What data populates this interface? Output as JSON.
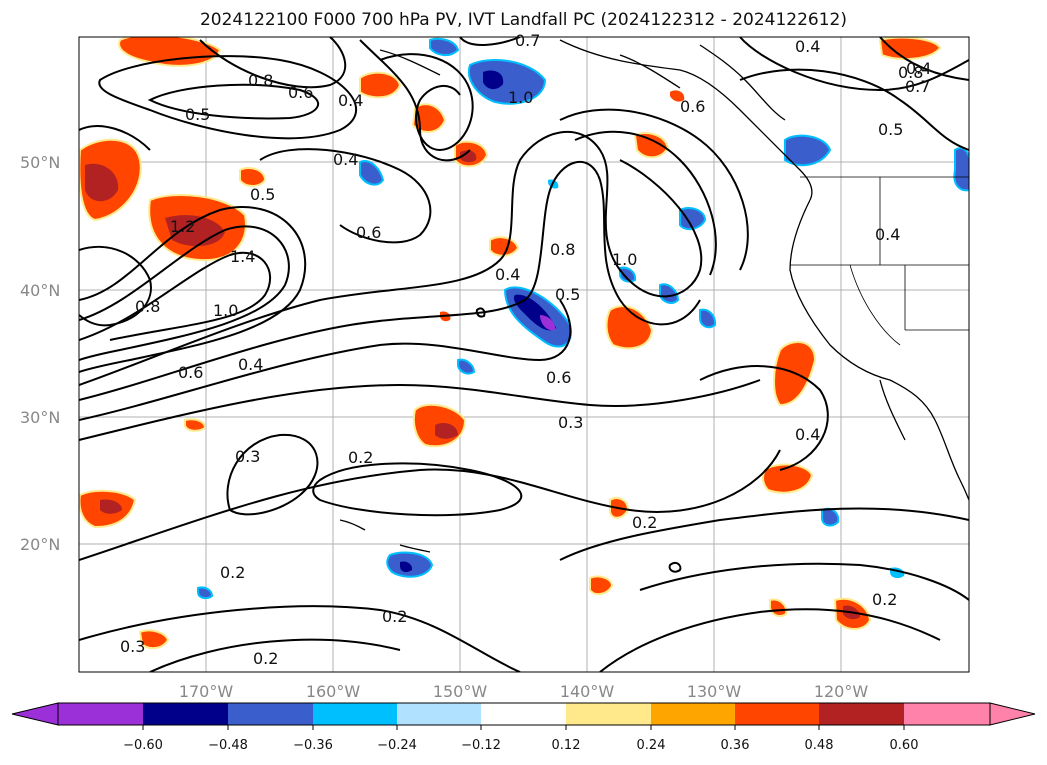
{
  "title": "2024122100 F000 700 hPa PV, IVT Landfall PC (2024122312 - 2024122612)",
  "lat_labels": [
    "50°N",
    "40°N",
    "30°N",
    "20°N"
  ],
  "lon_labels": [
    "170°W",
    "160°W",
    "150°W",
    "140°W",
    "130°W",
    "120°W"
  ],
  "contour_labels": [
    "0.8",
    "0.6",
    "0.4",
    "0.5",
    "1.0",
    "0.7",
    "0.4",
    "0.5",
    "0.6",
    "1.2",
    "1.4",
    "0.8",
    "1.0",
    "0.6",
    "0.4",
    "0.4",
    "0.8",
    "0.5",
    "1.0",
    "0.6",
    "0.3",
    "0.3",
    "0.2",
    "0.2",
    "0.4",
    "0.4",
    "0.2",
    "0.2",
    "0.3",
    "0.2",
    "0.2",
    "0.6",
    "0.8",
    "0.7",
    "0.5",
    "0.4",
    "0.4"
  ],
  "colorbar": {
    "ticks": [
      "−0.60",
      "−0.48",
      "−0.36",
      "−0.24",
      "−0.12",
      "0.12",
      "0.24",
      "0.36",
      "0.48",
      "0.60"
    ],
    "colors": [
      "#9b30d9",
      "#00008b",
      "#3a5fcd",
      "#00bfff",
      "#b0e2ff",
      "#ffffff",
      "#ffe98a",
      "#ffa500",
      "#ff4500",
      "#b22222",
      "#ff82ab"
    ]
  },
  "colors": {
    "neg_strong": "#00008b",
    "neg_mid": "#3a5fcd",
    "neg_light": "#00bfff",
    "pos_light": "#ffe98a",
    "pos_mid": "#ffa500",
    "pos_strong": "#ff4500",
    "pos_dark": "#b22222"
  }
}
